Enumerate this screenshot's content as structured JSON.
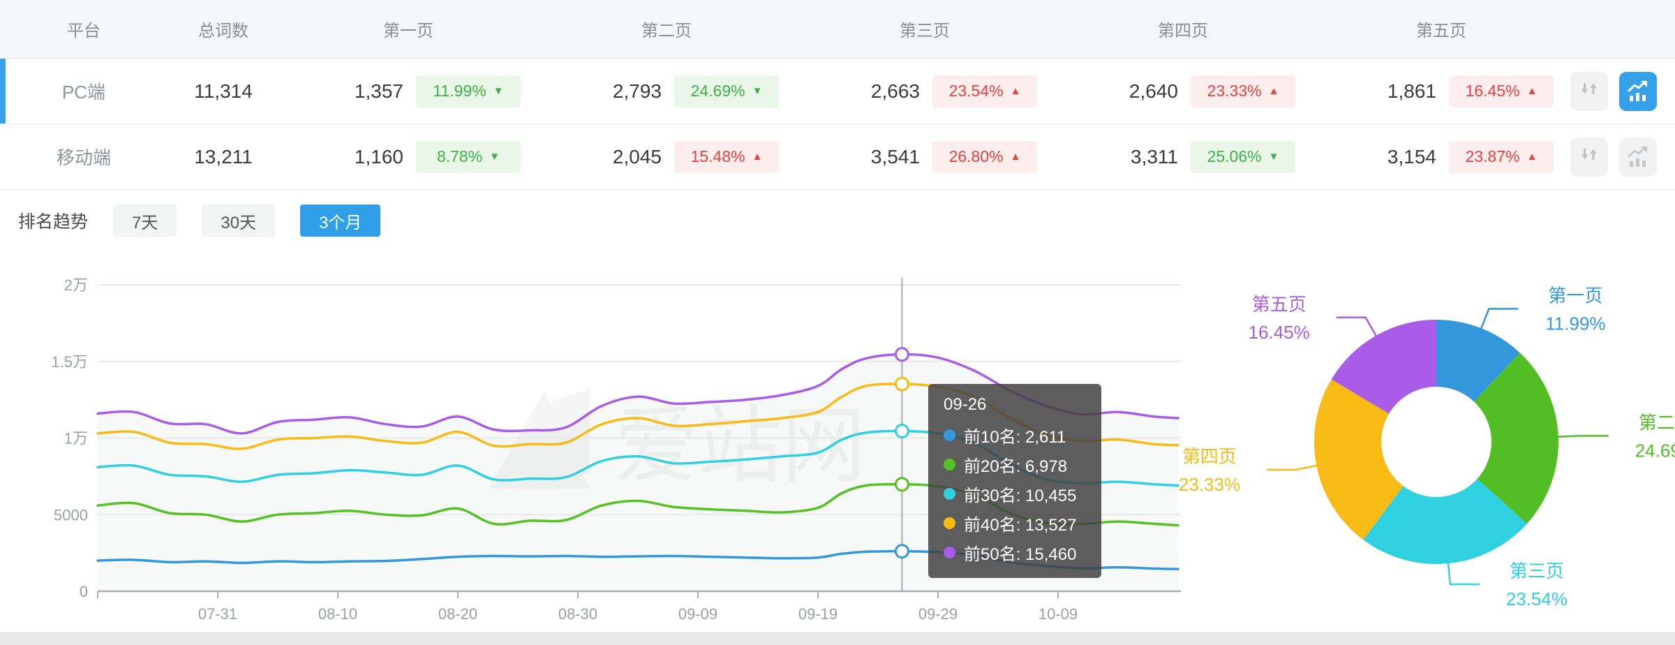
{
  "table": {
    "headers": {
      "platform": "平台",
      "total": "总词数",
      "pages": [
        "第一页",
        "第二页",
        "第三页",
        "第四页",
        "第五页"
      ]
    },
    "rows": [
      {
        "platform": "PC端",
        "total": "11,314",
        "selected": true,
        "pages": [
          {
            "count": "1,357",
            "pct": "11.99%",
            "dir": "down",
            "tone": "green"
          },
          {
            "count": "2,793",
            "pct": "24.69%",
            "dir": "down",
            "tone": "green"
          },
          {
            "count": "2,663",
            "pct": "23.54%",
            "dir": "up",
            "tone": "red"
          },
          {
            "count": "2,640",
            "pct": "23.33%",
            "dir": "up",
            "tone": "red"
          },
          {
            "count": "1,861",
            "pct": "16.45%",
            "dir": "up",
            "tone": "red"
          }
        ],
        "trend_button_active": true
      },
      {
        "platform": "移动端",
        "total": "13,211",
        "selected": false,
        "pages": [
          {
            "count": "1,160",
            "pct": "8.78%",
            "dir": "down",
            "tone": "green"
          },
          {
            "count": "2,045",
            "pct": "15.48%",
            "dir": "up",
            "tone": "red"
          },
          {
            "count": "3,541",
            "pct": "26.80%",
            "dir": "up",
            "tone": "red"
          },
          {
            "count": "3,311",
            "pct": "25.06%",
            "dir": "down",
            "tone": "green"
          },
          {
            "count": "3,154",
            "pct": "23.87%",
            "dir": "up",
            "tone": "red"
          }
        ],
        "trend_button_active": false
      }
    ]
  },
  "trend": {
    "title": "排名趋势",
    "tabs": [
      {
        "label": "7天",
        "active": false
      },
      {
        "label": "30天",
        "active": false
      },
      {
        "label": "3个月",
        "active": true
      }
    ],
    "watermark": "爱站网"
  },
  "tooltip": {
    "title": "09-26",
    "rows": [
      {
        "label": "前10名",
        "value": "2,611"
      },
      {
        "label": "前20名",
        "value": "6,978"
      },
      {
        "label": "前30名",
        "value": "10,455"
      },
      {
        "label": "前40名",
        "value": "13,527"
      },
      {
        "label": "前50名",
        "value": "15,460"
      }
    ]
  },
  "chart_data": [
    {
      "type": "line",
      "title": "排名趋势 3个月",
      "ylim": [
        0,
        20000
      ],
      "grid": true,
      "y_ticks": [
        {
          "value": 0,
          "label": "0"
        },
        {
          "value": 5000,
          "label": "5000"
        },
        {
          "value": 10000,
          "label": "1万"
        },
        {
          "value": 15000,
          "label": "1.5万"
        },
        {
          "value": 20000,
          "label": "2万"
        }
      ],
      "x_ticks": [
        {
          "day": 10,
          "label": "07-31"
        },
        {
          "day": 20,
          "label": "08-10"
        },
        {
          "day": 30,
          "label": "08-20"
        },
        {
          "day": 40,
          "label": "08-30"
        },
        {
          "day": 50,
          "label": "09-09"
        },
        {
          "day": 60,
          "label": "09-19"
        },
        {
          "day": 70,
          "label": "09-29"
        },
        {
          "day": 80,
          "label": "10-09"
        }
      ],
      "highlight": {
        "date": "09-26",
        "day": 67,
        "values": [
          2611,
          6978,
          10455,
          13527,
          15460
        ]
      },
      "series": [
        {
          "name": "前10名",
          "color": "#3398db",
          "points": [
            [
              0,
              2000
            ],
            [
              3,
              2050
            ],
            [
              6,
              1900
            ],
            [
              9,
              1950
            ],
            [
              12,
              1850
            ],
            [
              15,
              1950
            ],
            [
              18,
              1900
            ],
            [
              21,
              1950
            ],
            [
              24,
              1980
            ],
            [
              27,
              2100
            ],
            [
              30,
              2250
            ],
            [
              33,
              2300
            ],
            [
              36,
              2280
            ],
            [
              39,
              2300
            ],
            [
              42,
              2250
            ],
            [
              45,
              2280
            ],
            [
              48,
              2300
            ],
            [
              51,
              2250
            ],
            [
              54,
              2200
            ],
            [
              57,
              2150
            ],
            [
              60,
              2200
            ],
            [
              62,
              2450
            ],
            [
              64,
              2580
            ],
            [
              67,
              2611
            ],
            [
              70,
              2550
            ],
            [
              73,
              2350
            ],
            [
              76,
              1900
            ],
            [
              79,
              1650
            ],
            [
              82,
              1500
            ],
            [
              85,
              1560
            ],
            [
              88,
              1480
            ],
            [
              90,
              1450
            ]
          ]
        },
        {
          "name": "前20名",
          "color": "#55c123",
          "points": [
            [
              0,
              5600
            ],
            [
              3,
              5750
            ],
            [
              6,
              5100
            ],
            [
              9,
              5000
            ],
            [
              12,
              4550
            ],
            [
              15,
              5000
            ],
            [
              18,
              5100
            ],
            [
              21,
              5250
            ],
            [
              24,
              5000
            ],
            [
              27,
              4950
            ],
            [
              30,
              5400
            ],
            [
              33,
              4400
            ],
            [
              36,
              4600
            ],
            [
              39,
              4650
            ],
            [
              42,
              5600
            ],
            [
              45,
              5900
            ],
            [
              48,
              5500
            ],
            [
              51,
              5350
            ],
            [
              54,
              5250
            ],
            [
              57,
              5150
            ],
            [
              60,
              5450
            ],
            [
              62,
              6400
            ],
            [
              64,
              6900
            ],
            [
              67,
              6978
            ],
            [
              70,
              6850
            ],
            [
              73,
              6300
            ],
            [
              76,
              5100
            ],
            [
              79,
              4450
            ],
            [
              82,
              4400
            ],
            [
              85,
              4550
            ],
            [
              88,
              4400
            ],
            [
              90,
              4300
            ]
          ]
        },
        {
          "name": "前30名",
          "color": "#2fd0e0",
          "points": [
            [
              0,
              8100
            ],
            [
              3,
              8200
            ],
            [
              6,
              7600
            ],
            [
              9,
              7500
            ],
            [
              12,
              7150
            ],
            [
              15,
              7600
            ],
            [
              18,
              7700
            ],
            [
              21,
              7900
            ],
            [
              24,
              7750
            ],
            [
              27,
              7600
            ],
            [
              30,
              8200
            ],
            [
              33,
              7300
            ],
            [
              36,
              7350
            ],
            [
              39,
              7450
            ],
            [
              42,
              8500
            ],
            [
              45,
              8800
            ],
            [
              48,
              8350
            ],
            [
              51,
              8450
            ],
            [
              54,
              8600
            ],
            [
              57,
              8800
            ],
            [
              60,
              9050
            ],
            [
              62,
              9900
            ],
            [
              64,
              10350
            ],
            [
              67,
              10455
            ],
            [
              70,
              10300
            ],
            [
              73,
              9700
            ],
            [
              76,
              8300
            ],
            [
              79,
              7300
            ],
            [
              82,
              7050
            ],
            [
              85,
              7150
            ],
            [
              88,
              6980
            ],
            [
              90,
              6900
            ]
          ]
        },
        {
          "name": "前40名",
          "color": "#f8ba14",
          "points": [
            [
              0,
              10300
            ],
            [
              3,
              10400
            ],
            [
              6,
              9700
            ],
            [
              9,
              9600
            ],
            [
              12,
              9300
            ],
            [
              15,
              9900
            ],
            [
              18,
              10000
            ],
            [
              21,
              10100
            ],
            [
              24,
              9800
            ],
            [
              27,
              9700
            ],
            [
              30,
              10400
            ],
            [
              33,
              9500
            ],
            [
              36,
              9600
            ],
            [
              39,
              9700
            ],
            [
              42,
              10900
            ],
            [
              45,
              11300
            ],
            [
              48,
              10800
            ],
            [
              51,
              10900
            ],
            [
              54,
              11100
            ],
            [
              57,
              11300
            ],
            [
              60,
              11700
            ],
            [
              62,
              12700
            ],
            [
              64,
              13400
            ],
            [
              67,
              13527
            ],
            [
              70,
              13350
            ],
            [
              73,
              12700
            ],
            [
              76,
              11300
            ],
            [
              79,
              10200
            ],
            [
              82,
              9800
            ],
            [
              85,
              9900
            ],
            [
              88,
              9600
            ],
            [
              90,
              9530
            ]
          ]
        },
        {
          "name": "前50名",
          "color": "#a95ce8",
          "points": [
            [
              0,
              11600
            ],
            [
              3,
              11700
            ],
            [
              6,
              10950
            ],
            [
              9,
              10900
            ],
            [
              12,
              10300
            ],
            [
              15,
              11050
            ],
            [
              18,
              11200
            ],
            [
              21,
              11350
            ],
            [
              24,
              10900
            ],
            [
              27,
              10750
            ],
            [
              30,
              11400
            ],
            [
              33,
              10550
            ],
            [
              36,
              10500
            ],
            [
              39,
              10700
            ],
            [
              42,
              12100
            ],
            [
              45,
              12700
            ],
            [
              48,
              12250
            ],
            [
              51,
              12350
            ],
            [
              54,
              12500
            ],
            [
              57,
              12800
            ],
            [
              60,
              13400
            ],
            [
              62,
              14500
            ],
            [
              64,
              15200
            ],
            [
              67,
              15460
            ],
            [
              70,
              15250
            ],
            [
              73,
              14400
            ],
            [
              76,
              13100
            ],
            [
              79,
              12100
            ],
            [
              82,
              11550
            ],
            [
              85,
              11700
            ],
            [
              88,
              11400
            ],
            [
              90,
              11300
            ]
          ]
        }
      ]
    },
    {
      "type": "donut",
      "labels": [
        "第一页",
        "第二页",
        "第三页",
        "第四页",
        "第五页"
      ],
      "values": [
        11.99,
        24.69,
        23.54,
        23.33,
        16.45
      ],
      "unit": "%",
      "colors": [
        "#3398db",
        "#52bd25",
        "#2fd0e0",
        "#f8ba14",
        "#a95ce8"
      ],
      "legend_position": "outside-leader-lines"
    }
  ],
  "colors": {
    "accent_blue": "#36a0e8",
    "badge_green_text": "#3cb144",
    "badge_green_bg": "#eaf7e8",
    "badge_red_text": "#e8413e",
    "badge_red_bg": "#fdeeee"
  }
}
